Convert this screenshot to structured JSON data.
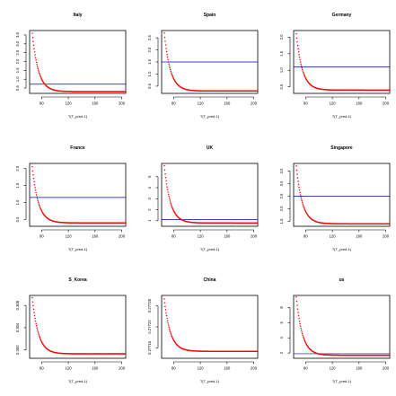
{
  "colors": {
    "points": "#ff0000",
    "hline": "#0000cc",
    "frame": "#000000"
  },
  "chart_data": [
    {
      "type": "scatter",
      "title": "Italy",
      "xlabel": "T(T_pred-1)",
      "xticks": [
        "80",
        "120",
        "160",
        "200"
      ],
      "xlim": [
        62,
        206
      ],
      "yticks": [
        "0.5",
        "1.0",
        "1.5",
        "2.0",
        "2.5",
        "3.0",
        "3.5"
      ],
      "ylim": [
        0.2,
        3.75
      ],
      "hline": 0.72,
      "curve": {
        "x0": 66,
        "peak": 3.6,
        "floor": 0.3,
        "decay": 0.11
      }
    },
    {
      "type": "scatter",
      "title": "Spain",
      "xlabel": "T(T_pred-1)",
      "xticks": [
        "80",
        "120",
        "160",
        "200"
      ],
      "xlim": [
        62,
        206
      ],
      "yticks": [
        "0.5",
        "1.0",
        "1.5",
        "2.0",
        "2.5"
      ],
      "ylim": [
        0.2,
        2.8
      ],
      "hline": 1.5,
      "curve": {
        "x0": 66,
        "peak": 2.7,
        "floor": 0.3,
        "decay": 0.11
      }
    },
    {
      "type": "scatter",
      "title": "Germany",
      "xlabel": "T(T_pred-1)",
      "xticks": [
        "80",
        "120",
        "160",
        "200"
      ],
      "xlim": [
        62,
        206
      ],
      "yticks": [
        "0.5",
        "1.0",
        "1.5",
        "2.0"
      ],
      "ylim": [
        0.3,
        2.2
      ],
      "hline": 1.1,
      "curve": {
        "x0": 66,
        "peak": 2.1,
        "floor": 0.4,
        "decay": 0.11
      }
    },
    {
      "type": "scatter",
      "title": "France",
      "xlabel": "T(T_pred-1)",
      "xticks": [
        "80",
        "120",
        "160",
        "200"
      ],
      "xlim": [
        62,
        206
      ],
      "yticks": [
        "0.5",
        "1.0",
        "1.5",
        "2.0"
      ],
      "ylim": [
        0.3,
        2.15
      ],
      "hline": 1.15,
      "curve": {
        "x0": 66,
        "peak": 2.05,
        "floor": 0.4,
        "decay": 0.11
      }
    },
    {
      "type": "scatter",
      "title": "UK",
      "xlabel": "T(T_pred-1)",
      "xticks": [
        "80",
        "120",
        "160",
        "200"
      ],
      "xlim": [
        62,
        206
      ],
      "yticks": [
        "1",
        "2",
        "3",
        "4",
        "5"
      ],
      "ylim": [
        0.5,
        6.2
      ],
      "hline": 1.1,
      "curve": {
        "x0": 66,
        "peak": 6.0,
        "floor": 0.8,
        "decay": 0.11
      }
    },
    {
      "type": "scatter",
      "title": "Singapore",
      "xlabel": "T(T_pred-1)",
      "xticks": [
        "80",
        "120",
        "160",
        "200"
      ],
      "xlim": [
        62,
        206
      ],
      "yticks": [
        "1.5",
        "2.0",
        "2.5",
        "3.0",
        "3.5"
      ],
      "ylim": [
        1.3,
        3.8
      ],
      "hline": 2.5,
      "curve": {
        "x0": 66,
        "peak": 3.7,
        "floor": 1.4,
        "decay": 0.11
      }
    },
    {
      "type": "scatter",
      "title": "S_Korea",
      "xlabel": "T(T_pred-1)",
      "xticks": [
        "80",
        "120",
        "160",
        "200"
      ],
      "xlim": [
        62,
        206
      ],
      "yticks": [
        "0.300",
        "0.304",
        "0.308"
      ],
      "ylim": [
        0.2985,
        0.3098
      ],
      "hline": null,
      "curve": {
        "x0": 66,
        "peak": 0.3094,
        "floor": 0.2993,
        "decay": 0.11
      }
    },
    {
      "type": "scatter",
      "title": "China",
      "xlabel": "T(T_pred-1)",
      "xticks": [
        "80",
        "120",
        "160",
        "200"
      ],
      "xlim": [
        62,
        206
      ],
      "yticks": [
        "0.27716",
        "0.27722",
        "0.27728"
      ],
      "ylim": [
        0.27713,
        0.27731
      ],
      "hline": null,
      "curve": {
        "x0": 66,
        "peak": 0.2773,
        "floor": 0.27715,
        "decay": 0.11
      }
    },
    {
      "type": "scatter",
      "title": "us",
      "xlabel": "T(T_pred-1)",
      "xticks": [
        "80",
        "120",
        "160",
        "200"
      ],
      "xlim": [
        62,
        206
      ],
      "yticks": [
        "2",
        "4",
        "6",
        "8"
      ],
      "ylim": [
        1.3,
        9.6
      ],
      "hline": 1.9,
      "curve": {
        "x0": 66,
        "peak": 9.4,
        "floor": 1.7,
        "decay": 0.11
      }
    }
  ]
}
